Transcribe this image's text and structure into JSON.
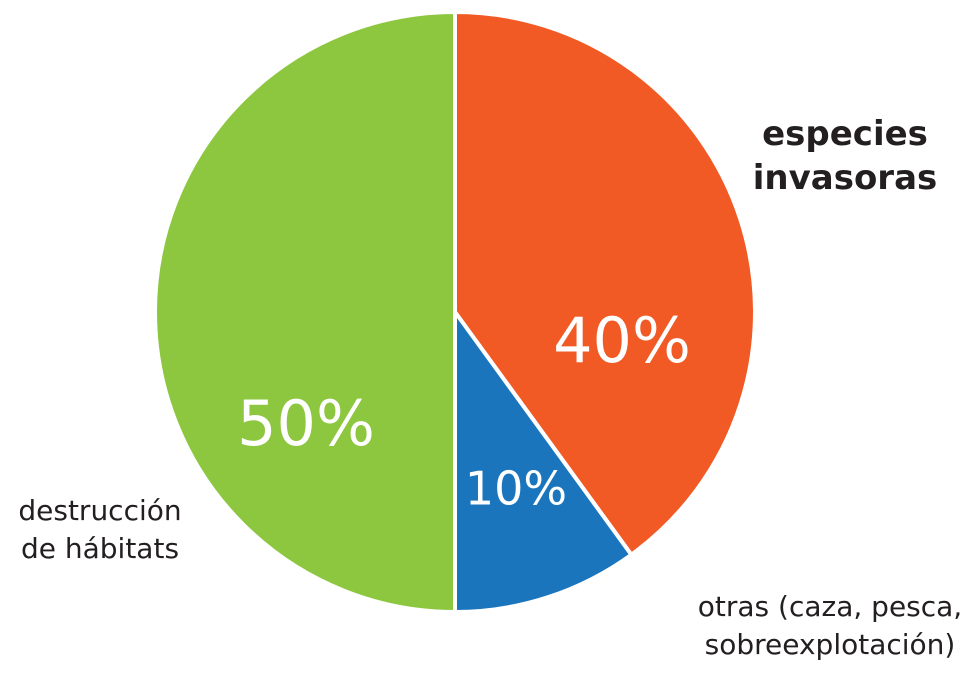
{
  "chart_data": {
    "type": "pie",
    "categories": [
      "especies invasoras",
      "otras (caza, pesca, sobreexplotación)",
      "destrucción de hábitats"
    ],
    "values": [
      40,
      10,
      50
    ],
    "value_labels": [
      "40%",
      "10%",
      "50%"
    ],
    "colors": [
      "#f15a24",
      "#1b75bc",
      "#8dc63f"
    ]
  }
}
